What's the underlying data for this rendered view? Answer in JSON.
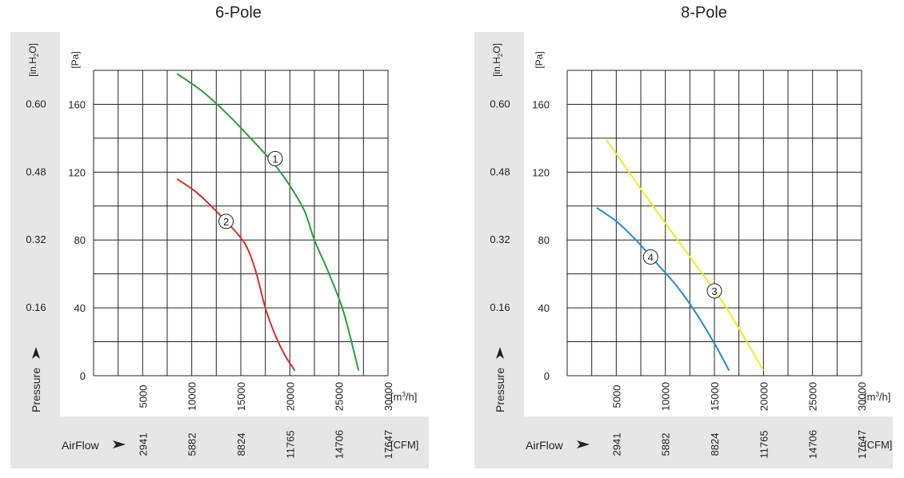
{
  "chart_data": [
    {
      "type": "line",
      "title": "6-Pole",
      "y_left_unit": "[in.H2O]",
      "y_left_ticks": [
        "0.60",
        "0.48",
        "0.32",
        "0.16"
      ],
      "y_right_unit": "[Pa]",
      "y_right_ticks": [
        "160",
        "120",
        "80",
        "40",
        "0"
      ],
      "ylim": [
        0,
        180
      ],
      "xlim": [
        0,
        30000
      ],
      "x_ticks": [
        "5000",
        "10000",
        "15000",
        "20000",
        "25000",
        "30000"
      ],
      "x_unit": "[m³/h]",
      "cfm_ticks": [
        "2941",
        "5882",
        "8824",
        "11765",
        "14706",
        "17647"
      ],
      "cfm_unit": "[CFM]",
      "pressure_label": "Pressure",
      "airflow_label": "AirFlow",
      "grid": true,
      "series": [
        {
          "label": "1",
          "color": "#27a03a",
          "x": [
            8500,
            11000,
            13500,
            16000,
            18500,
            20000,
            21500,
            22500,
            24000,
            25500,
            27000
          ],
          "y": [
            178,
            168,
            155,
            140,
            124,
            112,
            97,
            80,
            60,
            37,
            3
          ],
          "marker_at": [
            18500,
            128
          ]
        },
        {
          "label": "2",
          "color": "#dd2b2b",
          "x": [
            8500,
            10500,
            12500,
            14000,
            15500,
            16500,
            17500,
            18500,
            19500,
            20500
          ],
          "y": [
            116,
            108,
            97,
            88,
            77,
            62,
            40,
            24,
            12,
            3
          ],
          "marker_at": [
            13500,
            91
          ]
        }
      ]
    },
    {
      "type": "line",
      "title": "8-Pole",
      "y_left_unit": "[in.H2O]",
      "y_left_ticks": [
        "0.60",
        "0.48",
        "0.32",
        "0.16"
      ],
      "y_right_unit": "[Pa]",
      "y_right_ticks": [
        "160",
        "120",
        "80",
        "40",
        "0"
      ],
      "ylim": [
        0,
        180
      ],
      "xlim": [
        0,
        30000
      ],
      "x_ticks": [
        "5000",
        "10000",
        "15000",
        "20000",
        "25000",
        "30000"
      ],
      "x_unit": "[m³/h]",
      "cfm_ticks": [
        "2941",
        "5882",
        "8824",
        "11765",
        "14706",
        "17647"
      ],
      "cfm_unit": "[CFM]",
      "pressure_label": "Pressure",
      "airflow_label": "AirFlow",
      "grid": true,
      "series": [
        {
          "label": "3",
          "color": "#f5ea1e",
          "x": [
            4000,
            8000,
            12000,
            16000,
            20000
          ],
          "y": [
            139,
            106,
            74,
            42,
            3
          ],
          "marker_at": [
            15000,
            50
          ]
        },
        {
          "label": "4",
          "color": "#1c8ed2",
          "x": [
            3000,
            5000,
            7000,
            9000,
            11000,
            13000,
            15000,
            16500
          ],
          "y": [
            99,
            91,
            80,
            67,
            54,
            38,
            19,
            3
          ],
          "marker_at": [
            8500,
            70
          ]
        }
      ]
    }
  ]
}
